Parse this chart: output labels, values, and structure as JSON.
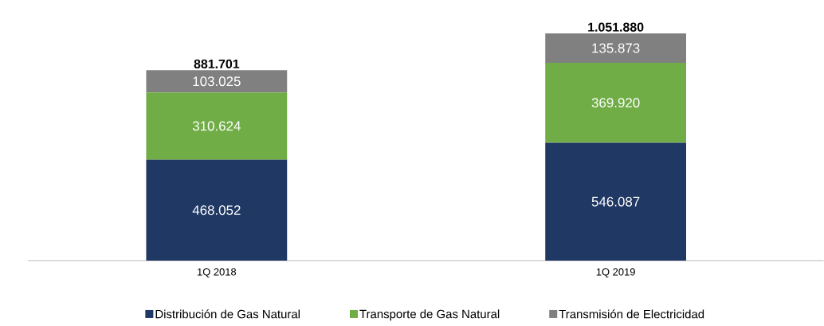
{
  "chart_data": {
    "type": "bar",
    "stacked": true,
    "legend": "bottom",
    "categories": [
      "1Q 2018",
      "1Q 2019"
    ],
    "series": [
      {
        "name": "Distribución de Gas Natural",
        "color": "#203864",
        "values": [
          468052,
          546087
        ],
        "value_labels": [
          "468.052",
          "546.087"
        ]
      },
      {
        "name": "Transporte de Gas Natural",
        "color": "#70ad47",
        "values": [
          310624,
          369920
        ],
        "value_labels": [
          "310.624",
          "369.920"
        ]
      },
      {
        "name": "Transmisión de Electricidad",
        "color": "#808080",
        "values": [
          103025,
          135873
        ],
        "value_labels": [
          "103.025",
          "135.873"
        ]
      }
    ],
    "totals": [
      "881.701",
      "1.051.880"
    ]
  }
}
